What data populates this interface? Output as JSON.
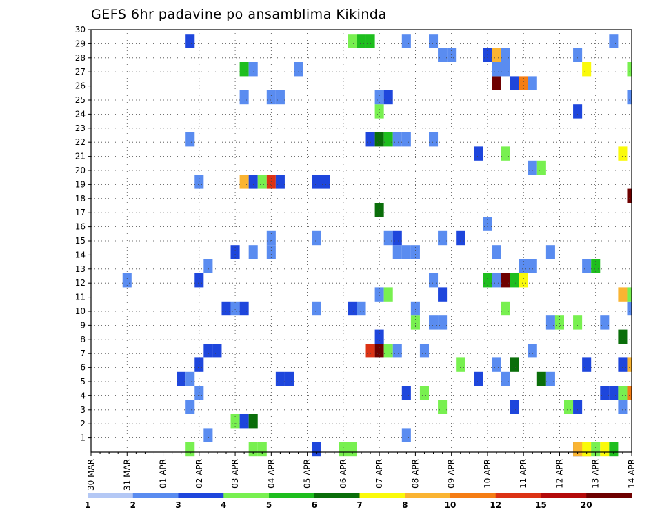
{
  "chart_data": {
    "type": "heatmap",
    "title": "GEFS 6hr padavine po ansamblima Kikinda",
    "x_tick_labels": [
      "30 MAR",
      "31 MAR",
      "01 APR",
      "02 APR",
      "03 APR",
      "04 APR",
      "05 APR",
      "06 APR",
      "07 APR",
      "08 APR",
      "09 APR",
      "10 APR",
      "11 APR",
      "12 APR",
      "13 APR",
      "14 APR"
    ],
    "y_tick_labels": [
      "1",
      "2",
      "3",
      "4",
      "5",
      "6",
      "7",
      "8",
      "9",
      "10",
      "11",
      "12",
      "13",
      "14",
      "15",
      "16",
      "17",
      "18",
      "19",
      "20",
      "21",
      "22",
      "23",
      "24",
      "25",
      "26",
      "27",
      "28",
      "29",
      "30"
    ],
    "x_range": [
      0,
      60
    ],
    "y_range": [
      0,
      30
    ],
    "time_step_hours": 6,
    "grid": "dotted",
    "colorbar": {
      "labels": [
        "1",
        "2",
        "3",
        "4",
        "5",
        "6",
        "7",
        "8",
        "10",
        "12",
        "15",
        "20"
      ],
      "colors": [
        "#b4c8f5",
        "#5a8cf0",
        "#1e46dc",
        "#78f050",
        "#1ebe1e",
        "#0a6e0a",
        "#fafa0a",
        "#fab432",
        "#f57d14",
        "#dc3214",
        "#b40a0a",
        "#6e0000"
      ]
    },
    "cells": [
      [
        11,
        0,
        3
      ],
      [
        18,
        0,
        3
      ],
      [
        19,
        0,
        3
      ],
      [
        25,
        0,
        2
      ],
      [
        28,
        0,
        3
      ],
      [
        29,
        0,
        3
      ],
      [
        54,
        0,
        2
      ],
      [
        55,
        0,
        8
      ],
      [
        54,
        0,
        7
      ],
      [
        55,
        0,
        6
      ],
      [
        56,
        0,
        3
      ],
      [
        57,
        0,
        6
      ],
      [
        58,
        0,
        4
      ],
      [
        13,
        1,
        1
      ],
      [
        35,
        1,
        1
      ],
      [
        16,
        2,
        3
      ],
      [
        17,
        2,
        2
      ],
      [
        18,
        2,
        5
      ],
      [
        11,
        3,
        1
      ],
      [
        39,
        3,
        3
      ],
      [
        47,
        3,
        2
      ],
      [
        53,
        3,
        3
      ],
      [
        54,
        3,
        2
      ],
      [
        59,
        3,
        1
      ],
      [
        12,
        4,
        1
      ],
      [
        35,
        4,
        2
      ],
      [
        37,
        4,
        3
      ],
      [
        57,
        4,
        2
      ],
      [
        58,
        4,
        2
      ],
      [
        59,
        4,
        3
      ],
      [
        60,
        4,
        8
      ],
      [
        10,
        5,
        2
      ],
      [
        11,
        5,
        1
      ],
      [
        21,
        5,
        2
      ],
      [
        22,
        5,
        2
      ],
      [
        43,
        5,
        2
      ],
      [
        46,
        5,
        1
      ],
      [
        50,
        5,
        5
      ],
      [
        51,
        5,
        1
      ],
      [
        12,
        6,
        2
      ],
      [
        41,
        6,
        3
      ],
      [
        45,
        6,
        1
      ],
      [
        47,
        6,
        5
      ],
      [
        55,
        6,
        2
      ],
      [
        59,
        6,
        2
      ],
      [
        60,
        6,
        7
      ],
      [
        13,
        7,
        2
      ],
      [
        14,
        7,
        2
      ],
      [
        31,
        7,
        9
      ],
      [
        32,
        7,
        11
      ],
      [
        33,
        7,
        3
      ],
      [
        34,
        7,
        1
      ],
      [
        37,
        7,
        1
      ],
      [
        49,
        7,
        1
      ],
      [
        32,
        8,
        2
      ],
      [
        59,
        8,
        5
      ],
      [
        36,
        9,
        3
      ],
      [
        38,
        9,
        1
      ],
      [
        39,
        9,
        1
      ],
      [
        51,
        9,
        1
      ],
      [
        52,
        9,
        3
      ],
      [
        54,
        9,
        3
      ],
      [
        57,
        9,
        1
      ],
      [
        15,
        10,
        2
      ],
      [
        16,
        10,
        1
      ],
      [
        17,
        10,
        2
      ],
      [
        25,
        10,
        1
      ],
      [
        29,
        10,
        2
      ],
      [
        30,
        10,
        1
      ],
      [
        36,
        10,
        1
      ],
      [
        46,
        10,
        3
      ],
      [
        60,
        10,
        1
      ],
      [
        32,
        11,
        1
      ],
      [
        33,
        11,
        3
      ],
      [
        39,
        11,
        2
      ],
      [
        59,
        11,
        7
      ],
      [
        60,
        11,
        3
      ],
      [
        4,
        12,
        1
      ],
      [
        12,
        12,
        2
      ],
      [
        38,
        12,
        1
      ],
      [
        44,
        12,
        4
      ],
      [
        45,
        12,
        1
      ],
      [
        46,
        12,
        11
      ],
      [
        47,
        12,
        4
      ],
      [
        48,
        12,
        6
      ],
      [
        13,
        13,
        1
      ],
      [
        48,
        13,
        1
      ],
      [
        49,
        13,
        1
      ],
      [
        55,
        13,
        1
      ],
      [
        56,
        13,
        4
      ],
      [
        16,
        14,
        2
      ],
      [
        18,
        14,
        1
      ],
      [
        20,
        14,
        1
      ],
      [
        34,
        14,
        1
      ],
      [
        35,
        14,
        1
      ],
      [
        36,
        14,
        1
      ],
      [
        45,
        14,
        1
      ],
      [
        51,
        14,
        1
      ],
      [
        20,
        15,
        1
      ],
      [
        25,
        15,
        1
      ],
      [
        33,
        15,
        1
      ],
      [
        34,
        15,
        2
      ],
      [
        39,
        15,
        1
      ],
      [
        41,
        15,
        2
      ],
      [
        44,
        16,
        1
      ],
      [
        32,
        17,
        5
      ],
      [
        60,
        18,
        11
      ],
      [
        12,
        19,
        1
      ],
      [
        17,
        19,
        7
      ],
      [
        18,
        19,
        2
      ],
      [
        19,
        19,
        3
      ],
      [
        20,
        19,
        9
      ],
      [
        21,
        19,
        2
      ],
      [
        25,
        19,
        2
      ],
      [
        26,
        19,
        2
      ],
      [
        49,
        20,
        1
      ],
      [
        50,
        20,
        3
      ],
      [
        43,
        21,
        2
      ],
      [
        46,
        21,
        3
      ],
      [
        59,
        21,
        6
      ],
      [
        11,
        22,
        1
      ],
      [
        31,
        22,
        2
      ],
      [
        32,
        22,
        5
      ],
      [
        33,
        22,
        4
      ],
      [
        34,
        22,
        1
      ],
      [
        35,
        22,
        1
      ],
      [
        38,
        22,
        1
      ],
      [
        32,
        24,
        3
      ],
      [
        54,
        24,
        2
      ],
      [
        17,
        25,
        1
      ],
      [
        20,
        25,
        1
      ],
      [
        21,
        25,
        1
      ],
      [
        32,
        25,
        1
      ],
      [
        33,
        25,
        2
      ],
      [
        60,
        25,
        1
      ],
      [
        45,
        26,
        11
      ],
      [
        47,
        26,
        2
      ],
      [
        48,
        26,
        8
      ],
      [
        49,
        26,
        1
      ],
      [
        17,
        27,
        4
      ],
      [
        18,
        27,
        1
      ],
      [
        23,
        27,
        1
      ],
      [
        45,
        27,
        1
      ],
      [
        46,
        27,
        1
      ],
      [
        55,
        27,
        6
      ],
      [
        60,
        27,
        3
      ],
      [
        39,
        28,
        1
      ],
      [
        40,
        28,
        1
      ],
      [
        44,
        28,
        2
      ],
      [
        45,
        28,
        7
      ],
      [
        46,
        28,
        1
      ],
      [
        54,
        28,
        1
      ],
      [
        11,
        29,
        2
      ],
      [
        29,
        29,
        3
      ],
      [
        30,
        29,
        4
      ],
      [
        31,
        29,
        4
      ],
      [
        35,
        29,
        1
      ],
      [
        38,
        29,
        1
      ],
      [
        58,
        29,
        1
      ]
    ]
  }
}
